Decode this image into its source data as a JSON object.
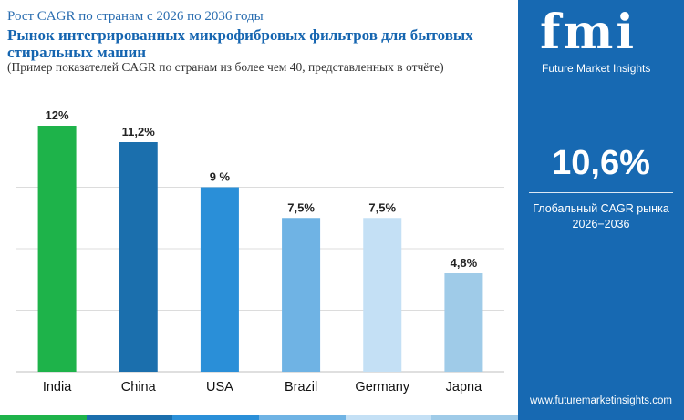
{
  "header": {
    "subtitle": "Рост CAGR по странам с 2026 по 2036 годы",
    "title": "Рынок интегрированных микрофибровых фильтров для бытовых стиральных машин",
    "note": "(Пример показателей CAGR по странам из более чем 40, представленных в отчёте)"
  },
  "panel": {
    "logo": "fmi",
    "company": "Future Market Insights",
    "kpi_value": "10,6%",
    "kpi_label_line1": "Глобальный CAGR рынка",
    "kpi_label_line2": "2026−2036",
    "website": "www.futuremarketinsights.com"
  },
  "colors": {
    "panel": "#1769b2",
    "bars": [
      "#1eb34a",
      "#1b6fad",
      "#2a8fd8",
      "#6fb3e4",
      "#c4e0f5",
      "#9fcbe8"
    ],
    "strip": [
      "#1eb34a",
      "#1b6fad",
      "#2a8fd8",
      "#6fb3e4",
      "#c4e0f5",
      "#9fcbe8"
    ]
  },
  "chart_data": {
    "type": "bar",
    "categories": [
      "India",
      "China",
      "USA",
      "Brazil",
      "Germany",
      "Japna"
    ],
    "values": [
      12,
      11.2,
      9,
      7.5,
      7.5,
      4.8
    ],
    "data_labels": [
      "12%",
      "11,2%",
      "9 %",
      "7,5%",
      "7,5%",
      "4,8%"
    ],
    "ylim": [
      0,
      12
    ],
    "grid": true,
    "legend": "none"
  }
}
